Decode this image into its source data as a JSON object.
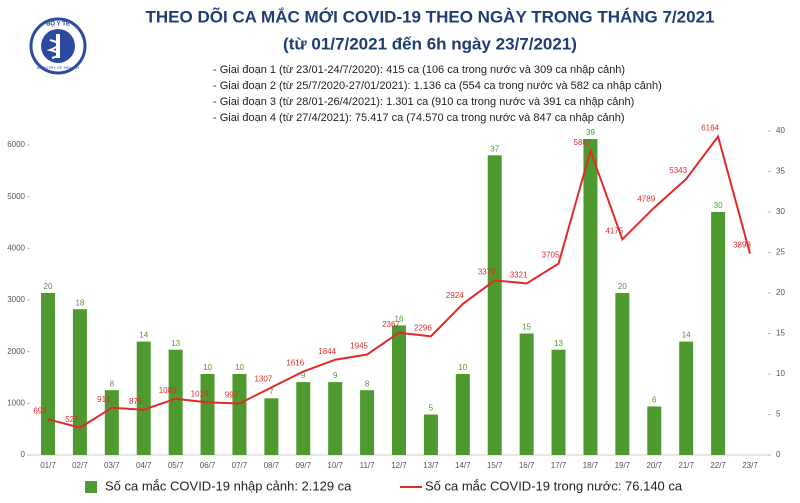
{
  "logo": {
    "top": "BỘ Y TẾ",
    "bottom": "MINISTRY OF HEALTH"
  },
  "chart_data": {
    "type": "bar-line",
    "title": "THEO DÕI CA MẮC MỚI COVID-19 THEO NGÀY TRONG THÁNG 7/2021",
    "subtitle": "(từ 01/7/2021 đến 6h ngày 23/7/2021)",
    "annotations": [
      "- Giai đoạn 1 (từ 23/01-24/7/2020): 415 ca (106 ca trong nước và 309 ca nhập cảnh)",
      "- Giai đoạn 2 (từ 25/7/2020-27/01/2021): 1.136 ca (554 ca trong nước và 582 ca nhập cảnh)",
      "- Giai đoạn 3 (từ 28/01-26/4/2021): 1.301 ca (910 ca trong nước và 391 ca nhập cảnh)",
      "- Giai đoạn 4 (từ 27/4/2021): 75.417 ca (74.570 ca trong nước và 847 ca nhập cảnh)"
    ],
    "categories": [
      "01/7",
      "02/7",
      "03/7",
      "04/7",
      "05/7",
      "06/7",
      "07/7",
      "08/7",
      "09/7",
      "10/7",
      "11/7",
      "12/7",
      "13/7",
      "14/7",
      "15/7",
      "16/7",
      "17/7",
      "18/7",
      "19/7",
      "20/7",
      "21/7",
      "22/7",
      "23/7"
    ],
    "series": [
      {
        "name": "Số ca mắc COVID-19 nhập cảnh: 2.129 ca",
        "type": "bar",
        "axis": "y2",
        "color": "#4f9a2e",
        "values": [
          20,
          18,
          8,
          14,
          13,
          10,
          10,
          7,
          9,
          9,
          8,
          16,
          5,
          10,
          37,
          15,
          13,
          39,
          20,
          6,
          14,
          30,
          null
        ]
      },
      {
        "name": "Số ca mắc COVID-19 trong nước: 76.140 ca",
        "type": "line",
        "color": "#e02a2a",
        "values": [
          693,
          527,
          914,
          876,
          1089,
          1019,
          997,
          1307,
          1616,
          1844,
          1945,
          2367,
          2296,
          2924,
          3379,
          3321,
          3705,
          5887,
          4175,
          4789,
          5343,
          6164,
          3898
        ]
      }
    ],
    "ylim": [
      0,
      6000
    ],
    "yticks": [
      0,
      1000,
      2000,
      3000,
      4000,
      5000,
      6000
    ],
    "y2lim": [
      0,
      40
    ],
    "y2ticks": [
      0,
      5,
      10,
      15,
      20,
      25,
      30,
      35,
      40
    ],
    "grid": false
  }
}
